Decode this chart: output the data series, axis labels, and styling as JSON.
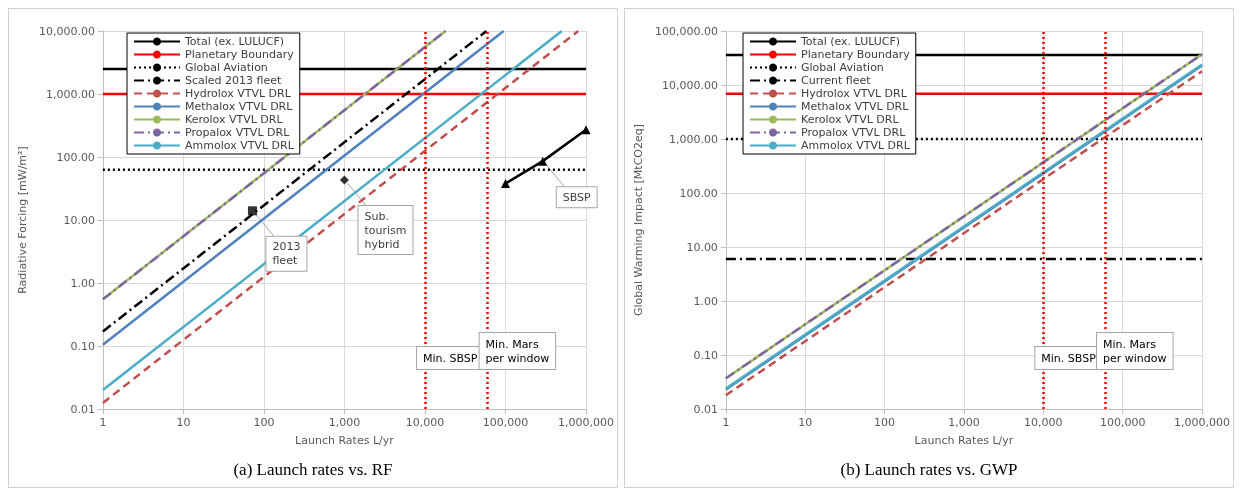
{
  "chart_data": [
    {
      "type": "line",
      "title": "(a) Launch rates vs. RF",
      "xlabel": "Launch Rates L/yr",
      "ylabel": "Radiative Forcing [mW/m²]",
      "log": "xy",
      "grid": true,
      "legend": "top left",
      "xlim": [
        1,
        1000000
      ],
      "ylim": [
        0.01,
        10000
      ],
      "xticks": [
        1,
        10,
        100,
        {
          "value": 1000,
          "label": "1,000"
        },
        {
          "value": 10000,
          "label": "10,000"
        },
        {
          "value": 100000,
          "label": "100,000"
        },
        {
          "value": 1000000,
          "label": "1,000,000"
        }
      ],
      "yticks": [
        {
          "value": 0.01,
          "label": "0.01"
        },
        {
          "value": 0.1,
          "label": "0.10"
        },
        {
          "value": 1,
          "label": "1.00"
        },
        {
          "value": 10,
          "label": "10.00"
        },
        {
          "value": 100,
          "label": "100.00"
        },
        {
          "value": 1000,
          "label": "1,000.00"
        },
        {
          "value": 10000,
          "label": "10,000.00"
        }
      ],
      "series": [
        {
          "name": "Total (ex. LULUCF)",
          "color": "#000000",
          "line_style": "solid",
          "x": [
            1,
            1000000
          ],
          "values": [
            2500,
            2500
          ]
        },
        {
          "name": "Planetary Boundary",
          "color": "#ff0000",
          "line_style": "solid",
          "x": [
            1,
            1000000
          ],
          "values": [
            1000,
            1000
          ]
        },
        {
          "name": "Global Aviation",
          "color": "#000000",
          "line_style": "dotted",
          "x": [
            1,
            1000000
          ],
          "values": [
            63,
            63
          ]
        },
        {
          "name": "Scaled 2013 fleet",
          "color": "#000000",
          "line_style": "dashdot",
          "x": [
            1,
            58000
          ],
          "values": [
            0.17,
            10000
          ]
        },
        {
          "name": "Hydrolox VTVL DRL",
          "color": "#c0504d",
          "line_style": "dashed",
          "x": [
            1,
            800000
          ],
          "values": [
            0.0125,
            10000
          ]
        },
        {
          "name": "Methalox VTVL DRL",
          "color": "#4f81bd",
          "line_style": "solid",
          "x": [
            1,
            95000
          ],
          "values": [
            0.105,
            10000
          ]
        },
        {
          "name": "Kerolox VTVL DRL",
          "color": "#9bbb59",
          "line_style": "solid",
          "x": [
            1,
            18000
          ],
          "values": [
            0.55,
            10000
          ]
        },
        {
          "name": "Propalox VTVL DRL",
          "color": "#8064a2",
          "line_style": "dashdot",
          "x": [
            1,
            18000
          ],
          "values": [
            0.55,
            10000
          ]
        },
        {
          "name": "Ammolox VTVL DRL",
          "color": "#4bacc6",
          "line_style": "solid",
          "x": [
            1,
            500000
          ],
          "values": [
            0.02,
            10000
          ]
        },
        {
          "type": "scatter",
          "color": "#000000",
          "marker": "square",
          "x": [
            72
          ],
          "values": [
            14
          ]
        },
        {
          "type": "scatter",
          "color": "#000000",
          "marker": "diamond",
          "x": [
            1000
          ],
          "values": [
            43
          ]
        },
        {
          "color": "#000000",
          "line_style": "solid",
          "marker": "triangle",
          "x": [
            100000,
            290000,
            1000000
          ],
          "values": [
            38,
            86,
            270
          ]
        }
      ],
      "ref_lines": [
        {
          "axis": "x",
          "value": 10000,
          "label": "Min. SBSP",
          "color": "#ff0000",
          "line_style": "dotted"
        },
        {
          "axis": "x",
          "value": 60000,
          "label": "Min. Mars per window",
          "color": "#ff0000",
          "line_style": "dotted"
        }
      ],
      "annotations": [
        {
          "text": "2013 fleet",
          "x": 72,
          "y": 14
        },
        {
          "text": "Sub. tourism hybrid",
          "x": 1000,
          "y": 43
        },
        {
          "text": "SBSP",
          "x": 290000,
          "y": 86
        }
      ]
    },
    {
      "type": "line",
      "title": "(b) Launch rates vs. GWP",
      "xlabel": "Launch Rates L/yr",
      "ylabel": "Global Warming Impact [MtCO2eq]",
      "log": "xy",
      "grid": true,
      "legend": "top left",
      "xlim": [
        1,
        1000000
      ],
      "ylim": [
        0.01,
        100000
      ],
      "xticks": [
        1,
        10,
        100,
        {
          "value": 1000,
          "label": "1,000"
        },
        {
          "value": 10000,
          "label": "10,000"
        },
        {
          "value": 100000,
          "label": "100,000"
        },
        {
          "value": 1000000,
          "label": "1,000,000"
        }
      ],
      "yticks": [
        {
          "value": 0.01,
          "label": "0.01"
        },
        {
          "value": 0.1,
          "label": "0.10"
        },
        {
          "value": 1,
          "label": "1.00"
        },
        {
          "value": 10,
          "label": "10.00"
        },
        {
          "value": 100,
          "label": "100.00"
        },
        {
          "value": 1000,
          "label": "1,000.00"
        },
        {
          "value": 10000,
          "label": "10,000.00"
        },
        {
          "value": 100000,
          "label": "100,000.00"
        }
      ],
      "series": [
        {
          "name": "Total (ex. LULUCF)",
          "color": "#000000",
          "line_style": "solid",
          "x": [
            1,
            1000000
          ],
          "values": [
            36000,
            36000
          ]
        },
        {
          "name": "Planetary Boundary",
          "color": "#ff0000",
          "line_style": "solid",
          "x": [
            1,
            1000000
          ],
          "values": [
            6900,
            6900
          ]
        },
        {
          "name": "Global Aviation",
          "color": "#000000",
          "line_style": "dotted",
          "x": [
            1,
            1000000
          ],
          "values": [
            1000,
            1000
          ]
        },
        {
          "name": "Current fleet",
          "color": "#000000",
          "line_style": "dashdot",
          "x": [
            1,
            1000000
          ],
          "values": [
            6,
            6
          ]
        },
        {
          "name": "Hydrolox VTVL DRL",
          "color": "#c0504d",
          "line_style": "dashed",
          "x": [
            1,
            1000000
          ],
          "values": [
            0.018,
            18000
          ]
        },
        {
          "name": "Methalox VTVL DRL",
          "color": "#4f81bd",
          "line_style": "solid",
          "x": [
            1,
            1000000
          ],
          "values": [
            0.023,
            23000
          ]
        },
        {
          "name": "Kerolox VTVL DRL",
          "color": "#9bbb59",
          "line_style": "solid",
          "x": [
            1,
            1000000
          ],
          "values": [
            0.037,
            37000
          ]
        },
        {
          "name": "Propalox VTVL DRL",
          "color": "#8064a2",
          "line_style": "dashdot",
          "x": [
            1,
            1000000
          ],
          "values": [
            0.037,
            37000
          ]
        },
        {
          "name": "Ammolox VTVL DRL",
          "color": "#4bacc6",
          "line_style": "solid",
          "x": [
            1,
            1000000
          ],
          "values": [
            0.024,
            24000
          ]
        }
      ],
      "ref_lines": [
        {
          "axis": "x",
          "value": 10000,
          "label": "Min. SBSP",
          "color": "#ff0000",
          "line_style": "dotted"
        },
        {
          "axis": "x",
          "value": 60000,
          "label": "Min. Mars per window",
          "color": "#ff0000",
          "line_style": "dotted"
        }
      ]
    }
  ]
}
